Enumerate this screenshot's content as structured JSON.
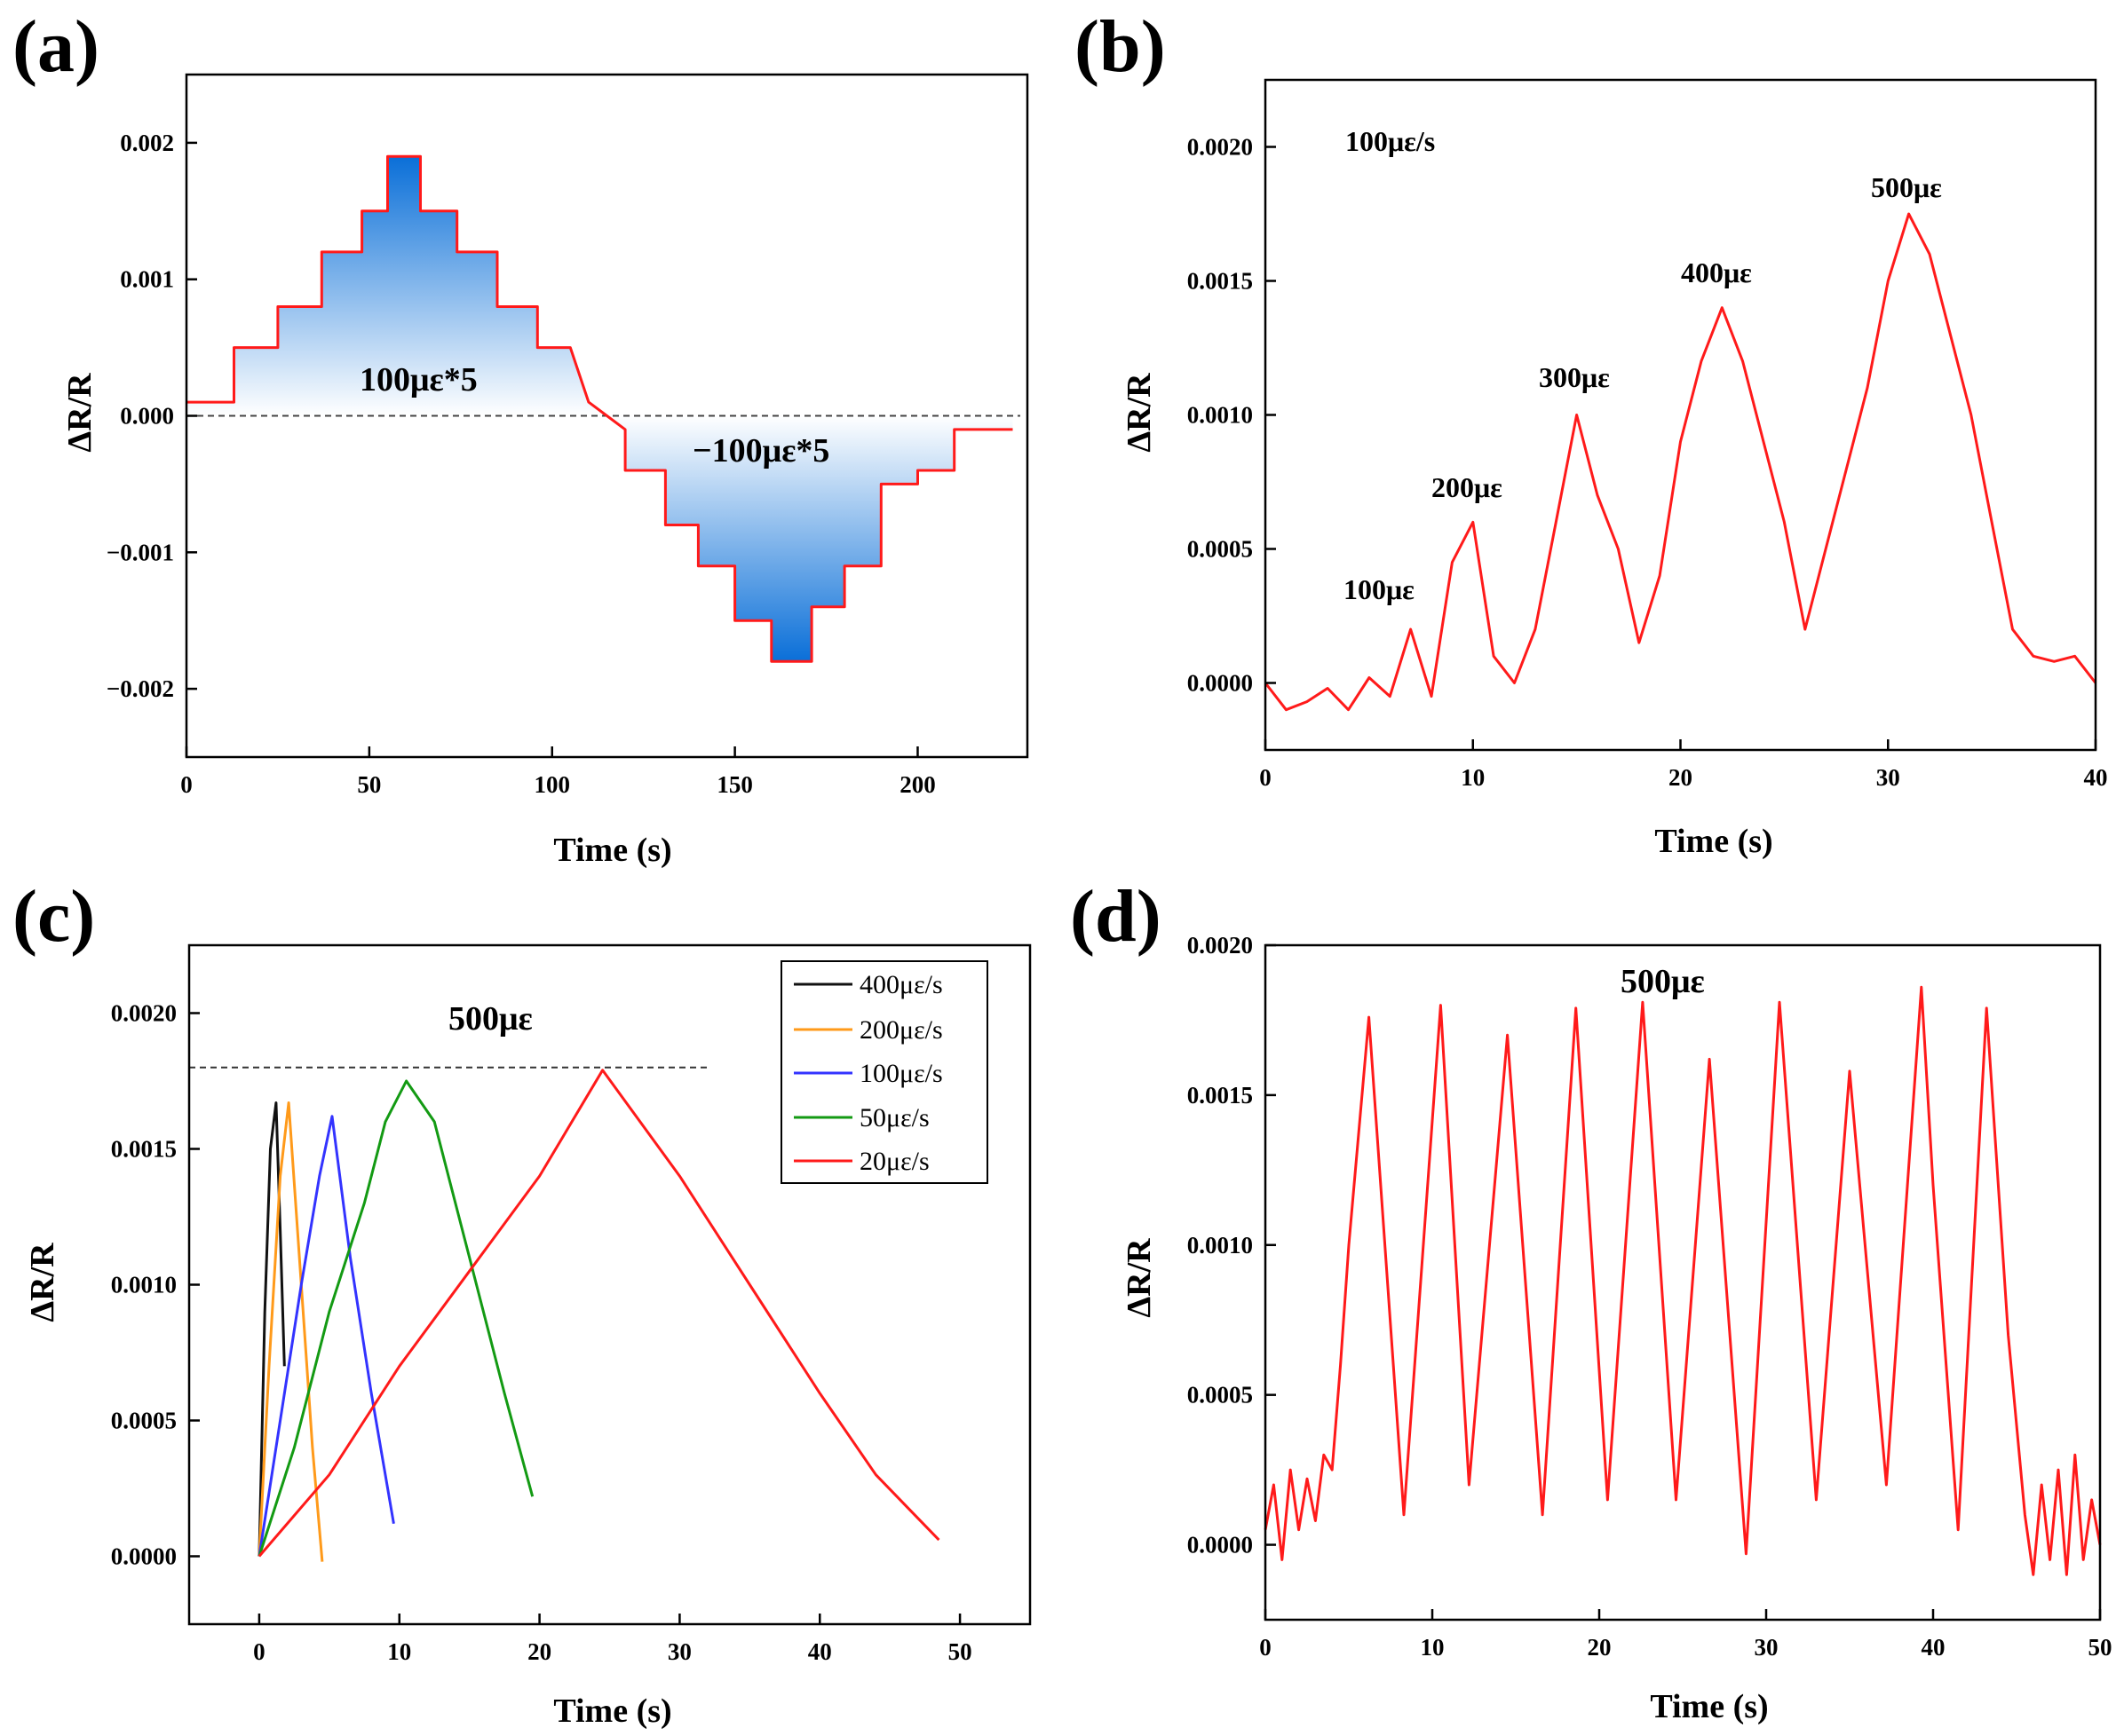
{
  "colors": {
    "red": "#ff1a1a",
    "black": "#111111",
    "orange": "#ff9a1a",
    "blue": "#3333ff",
    "green": "#139a13",
    "fill_dark": "#0a6fd8",
    "fill_light": "#ffffff"
  },
  "chart_data": [
    {
      "panel": "(a)",
      "type": "line",
      "xlabel": "Time (s)",
      "ylabel": "ΔR/R",
      "xlim": [
        0,
        230
      ],
      "ylim": [
        -0.0025,
        0.0025
      ],
      "xticks": [
        0,
        50,
        100,
        150,
        200
      ],
      "yticks": [
        -0.002,
        -0.001,
        0.0,
        0.001,
        0.002
      ],
      "ytick_labels": [
        "−0.002",
        "−0.001",
        "0.000",
        "0.001",
        "0.002"
      ],
      "annotations": [
        "100με*5",
        "−100με*5"
      ],
      "reference_line": 0.0,
      "series": [
        {
          "name": "ΔR/R",
          "color": "red",
          "x": [
            0,
            13,
            13,
            25,
            25,
            37,
            37,
            48,
            48,
            55,
            55,
            64,
            64,
            74,
            74,
            85,
            85,
            96,
            96,
            105,
            110,
            115,
            120,
            120,
            131,
            131,
            140,
            140,
            150,
            150,
            160,
            160,
            171,
            171,
            180,
            180,
            190,
            190,
            200,
            200,
            210,
            210,
            222,
            226
          ],
          "y": [
            0.0001,
            0.0001,
            0.0005,
            0.0005,
            0.0008,
            0.0008,
            0.0012,
            0.0012,
            0.0015,
            0.0015,
            0.0019,
            0.0019,
            0.0015,
            0.0015,
            0.0012,
            0.0012,
            0.0008,
            0.0008,
            0.0005,
            0.0005,
            0.0001,
            0.0,
            -0.0001,
            -0.0004,
            -0.0004,
            -0.0008,
            -0.0008,
            -0.0011,
            -0.0011,
            -0.0015,
            -0.0015,
            -0.0018,
            -0.0018,
            -0.0014,
            -0.0014,
            -0.0011,
            -0.0011,
            -0.0005,
            -0.0005,
            -0.0004,
            -0.0004,
            -0.0001,
            -0.0001,
            -0.0001
          ]
        }
      ]
    },
    {
      "panel": "(b)",
      "type": "line",
      "xlabel": "Time (s)",
      "ylabel": "ΔR/R",
      "xlim": [
        0,
        40
      ],
      "ylim": [
        -0.00025,
        0.00225
      ],
      "xticks": [
        0,
        10,
        20,
        30,
        40
      ],
      "yticks": [
        0.0,
        0.0005,
        0.001,
        0.0015,
        0.002
      ],
      "ytick_labels": [
        "0.0000",
        "0.0005",
        "0.0010",
        "0.0015",
        "0.0020"
      ],
      "title_note": "100με/s",
      "peak_labels": [
        "100με",
        "200με",
        "300με",
        "400με",
        "500με"
      ],
      "series": [
        {
          "name": "ΔR/R",
          "color": "red",
          "x": [
            0,
            1,
            2,
            3,
            4,
            5,
            6,
            7,
            8,
            9,
            10,
            11,
            12,
            13,
            14,
            15,
            16,
            17,
            18,
            19,
            20,
            21,
            22,
            23,
            24,
            25,
            26,
            27,
            28,
            29,
            30,
            31,
            32,
            33,
            34,
            35,
            36,
            37,
            38,
            39,
            40
          ],
          "y": [
            0.0,
            -0.0001,
            -7e-05,
            -2e-05,
            -0.0001,
            2e-05,
            -5e-05,
            0.0002,
            -5e-05,
            0.00045,
            0.0006,
            0.0001,
            0.0,
            0.0002,
            0.0006,
            0.001,
            0.0007,
            0.0005,
            0.00015,
            0.0004,
            0.0009,
            0.0012,
            0.0014,
            0.0012,
            0.0009,
            0.0006,
            0.0002,
            0.0005,
            0.0008,
            0.0011,
            0.0015,
            0.00175,
            0.0016,
            0.0013,
            0.001,
            0.0006,
            0.0002,
            0.0001,
            8e-05,
            0.0001,
            0.0
          ]
        }
      ]
    },
    {
      "panel": "(c)",
      "type": "line",
      "xlabel": "Time (s)",
      "ylabel": "ΔR/R",
      "xlim": [
        -5,
        55
      ],
      "ylim": [
        -0.00025,
        0.00225
      ],
      "xticks": [
        0,
        10,
        20,
        30,
        40,
        50
      ],
      "yticks": [
        0.0,
        0.0005,
        0.001,
        0.0015,
        0.002
      ],
      "ytick_labels": [
        "0.0000",
        "0.0005",
        "0.0010",
        "0.0015",
        "0.0020"
      ],
      "annotation": "500με",
      "reference_line": 0.0018,
      "legend": [
        "400με/s",
        "200με/s",
        "100με/s",
        "50με/s",
        "20με/s"
      ],
      "series": [
        {
          "name": "400με/s",
          "color": "black",
          "x": [
            0,
            0.4,
            0.8,
            1.2,
            1.5,
            1.8
          ],
          "y": [
            0.0,
            0.0009,
            0.0015,
            0.00167,
            0.0012,
            0.0007
          ]
        },
        {
          "name": "200με/s",
          "color": "orange",
          "x": [
            0,
            0.7,
            1.5,
            2.1,
            3.0,
            3.8,
            4.5
          ],
          "y": [
            0.0,
            0.0007,
            0.0014,
            0.00167,
            0.001,
            0.0004,
            -2e-05
          ]
        },
        {
          "name": "100με/s",
          "color": "blue",
          "x": [
            0,
            1.5,
            3.0,
            4.3,
            5.2,
            6.5,
            8.0,
            9.6
          ],
          "y": [
            0.0,
            0.0005,
            0.001,
            0.0014,
            0.00162,
            0.0011,
            0.0006,
            0.00012
          ]
        },
        {
          "name": "50με/s",
          "color": "green",
          "x": [
            0,
            2.5,
            5.0,
            7.5,
            9.0,
            10.5,
            12.5,
            15.0,
            17.5,
            19.5
          ],
          "y": [
            0.0,
            0.0004,
            0.0009,
            0.0013,
            0.0016,
            0.00175,
            0.0016,
            0.0011,
            0.0006,
            0.00022
          ]
        },
        {
          "name": "20με/s",
          "color": "red",
          "x": [
            0,
            5,
            10,
            15,
            20,
            24.5,
            30,
            35,
            40,
            44,
            48.5
          ],
          "y": [
            0.0,
            0.0003,
            0.0007,
            0.00105,
            0.0014,
            0.00179,
            0.0014,
            0.001,
            0.0006,
            0.0003,
            6e-05
          ]
        }
      ]
    },
    {
      "panel": "(d)",
      "type": "line",
      "xlabel": "Time (s)",
      "ylabel": "ΔR/R",
      "xlim": [
        0,
        50
      ],
      "ylim": [
        -0.00025,
        0.002
      ],
      "xticks": [
        0,
        10,
        20,
        30,
        40,
        50
      ],
      "yticks": [
        0.0,
        0.0005,
        0.001,
        0.0015,
        0.002
      ],
      "ytick_labels": [
        "0.0000",
        "0.0005",
        "0.0010",
        "0.0015",
        "0.0020"
      ],
      "annotation": "500με",
      "series": [
        {
          "name": "ΔR/R",
          "color": "red",
          "x": [
            0,
            0.5,
            1,
            1.5,
            2,
            2.5,
            3,
            3.5,
            4,
            4.5,
            5,
            6.2,
            8.3,
            10.5,
            12.2,
            14.5,
            16.6,
            18.6,
            20.5,
            22.6,
            24.6,
            26.6,
            28.8,
            30.8,
            33.0,
            35.0,
            37.2,
            39.3,
            40.0,
            41.5,
            43.2,
            44.5,
            45.5,
            46,
            46.5,
            47,
            47.5,
            48,
            48.5,
            49,
            49.5,
            50
          ],
          "y": [
            5e-05,
            0.0002,
            -5e-05,
            0.00025,
            5e-05,
            0.00022,
            8e-05,
            0.0003,
            0.00025,
            0.0006,
            0.001,
            0.00176,
            0.0001,
            0.0018,
            0.0002,
            0.0017,
            0.0001,
            0.00179,
            0.00015,
            0.00181,
            0.00015,
            0.00162,
            -3e-05,
            0.00181,
            0.00015,
            0.00158,
            0.0002,
            0.00186,
            0.0012,
            5e-05,
            0.00179,
            0.0007,
            0.0001,
            -0.0001,
            0.0002,
            -5e-05,
            0.00025,
            -0.0001,
            0.0003,
            -5e-05,
            0.00015,
            0.0
          ]
        }
      ]
    }
  ]
}
